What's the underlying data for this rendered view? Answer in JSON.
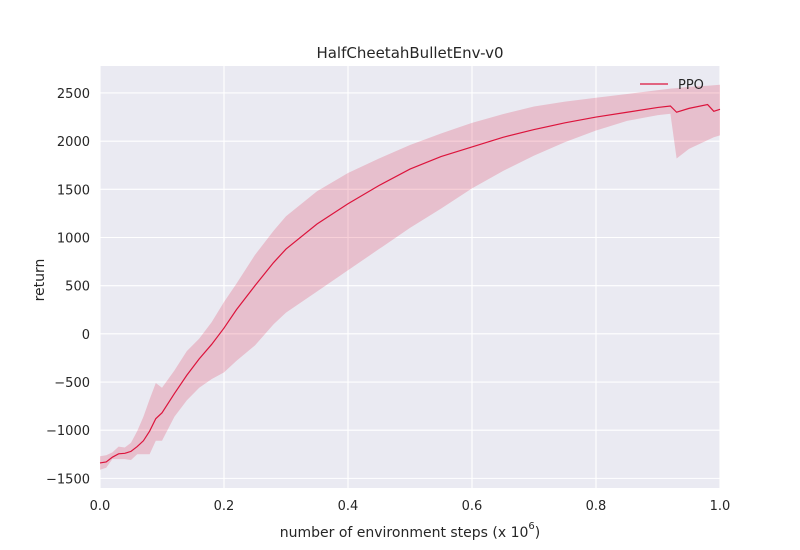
{
  "chart_data": {
    "type": "line",
    "title": "HalfCheetahBulletEnv-v0",
    "xlabel": "number of environment steps (x 10",
    "xlabel_exponent": "6",
    "xlabel_suffix": ")",
    "ylabel": "return",
    "xlim": [
      0.0,
      1.0
    ],
    "ylim": [
      -1600,
      2780
    ],
    "xticks": [
      0.0,
      0.2,
      0.4,
      0.6,
      0.8,
      1.0
    ],
    "xtick_labels": [
      "0.0",
      "0.2",
      "0.4",
      "0.6",
      "0.8",
      "1.0"
    ],
    "yticks": [
      -1500,
      -1000,
      -500,
      0,
      500,
      1000,
      1500,
      2000,
      2500
    ],
    "ytick_labels": [
      "−1500",
      "−1000",
      "−500",
      "0",
      "500",
      "1000",
      "1500",
      "2000",
      "2500"
    ],
    "grid": true,
    "legend_position": "top-right",
    "series": [
      {
        "name": "PPO",
        "color": "#dc143c",
        "band_color": "#dc143c",
        "x": [
          0.0,
          0.01,
          0.02,
          0.03,
          0.04,
          0.05,
          0.06,
          0.07,
          0.08,
          0.09,
          0.1,
          0.12,
          0.14,
          0.16,
          0.18,
          0.2,
          0.22,
          0.25,
          0.28,
          0.3,
          0.35,
          0.4,
          0.45,
          0.5,
          0.55,
          0.6,
          0.65,
          0.7,
          0.75,
          0.8,
          0.85,
          0.9,
          0.92,
          0.93,
          0.95,
          0.98,
          0.99,
          1.0
        ],
        "mean": [
          -1340,
          -1330,
          -1280,
          -1245,
          -1240,
          -1220,
          -1170,
          -1110,
          -1010,
          -880,
          -820,
          -620,
          -430,
          -260,
          -110,
          60,
          250,
          500,
          740,
          880,
          1140,
          1350,
          1540,
          1710,
          1840,
          1940,
          2040,
          2120,
          2190,
          2250,
          2300,
          2350,
          2365,
          2300,
          2340,
          2380,
          2310,
          2330
        ],
        "upper": [
          -1270,
          -1260,
          -1230,
          -1170,
          -1180,
          -1130,
          -1010,
          -860,
          -680,
          -510,
          -560,
          -380,
          -180,
          -50,
          120,
          330,
          520,
          820,
          1070,
          1220,
          1480,
          1670,
          1820,
          1960,
          2080,
          2190,
          2280,
          2360,
          2410,
          2450,
          2490,
          2530,
          2545,
          2550,
          2565,
          2575,
          2580,
          2585
        ],
        "lower": [
          -1410,
          -1390,
          -1300,
          -1300,
          -1300,
          -1310,
          -1250,
          -1250,
          -1250,
          -1110,
          -1110,
          -860,
          -690,
          -560,
          -470,
          -400,
          -280,
          -120,
          100,
          220,
          440,
          660,
          880,
          1100,
          1300,
          1510,
          1690,
          1850,
          1990,
          2110,
          2210,
          2270,
          2285,
          1820,
          1920,
          2010,
          2040,
          2060
        ]
      }
    ]
  }
}
